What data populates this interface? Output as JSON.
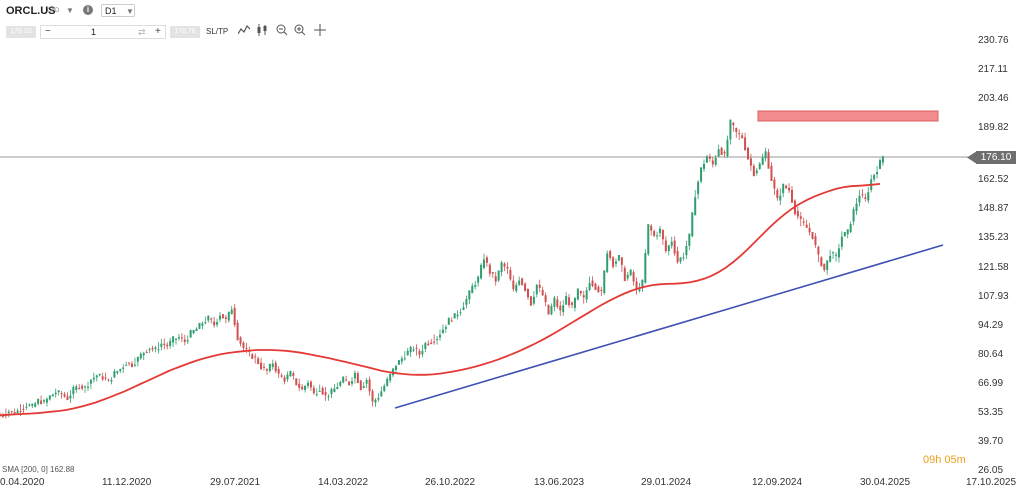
{
  "header": {
    "symbol": "ORCL.US",
    "symbol_type": "CFD",
    "timeframe": "D1",
    "sell_price": "176.10",
    "buy_price": "176.78",
    "quantity": "1",
    "sl_tp": "SL/TP"
  },
  "tools": [
    "line-chart-icon",
    "candles-icon",
    "zoom-out-icon",
    "zoom-in-icon",
    "crosshair-icon"
  ],
  "price_axis": [
    "230.76",
    "217.11",
    "203.46",
    "189.82",
    "176.10",
    "162.52",
    "148.87",
    "135.23",
    "121.58",
    "107.93",
    "94.29",
    "80.64",
    "66.99",
    "53.35",
    "39.70",
    "26.05"
  ],
  "date_axis": [
    "0.04.2020",
    "11.12.2020",
    "29.07.2021",
    "14.03.2022",
    "26.10.2022",
    "13.06.2023",
    "29.01.2024",
    "12.09.2024",
    "30.04.2025",
    "17.10.2025"
  ],
  "current_price": "176.10",
  "countdown": "09h 05m",
  "indicator": "SMA [200, 0] 162.88",
  "colors": {
    "bull": "#2e9e6e",
    "bear": "#d05050",
    "sma": "#e53935",
    "trendline": "#3f51b5",
    "resistance_zone": "#f07f7f",
    "price_line": "#8a8a8a"
  },
  "chart_data": {
    "type": "line",
    "ylim": [
      26.05,
      230.76
    ],
    "series": [
      {
        "values": [
          53,
          55,
          54,
          56,
          58,
          57,
          60,
          59,
          62,
          64,
          63,
          61,
          65,
          67,
          66,
          70,
          72,
          71,
          69,
          73,
          75,
          78,
          77,
          80,
          83,
          85,
          84,
          87,
          86,
          89,
          90,
          88,
          92,
          94,
          97,
          99,
          96,
          101,
          98,
          104,
          90,
          85,
          82,
          80,
          76,
          74,
          78,
          72,
          70,
          73,
          68,
          65,
          69,
          63,
          66,
          62,
          64,
          67,
          70,
          68,
          73,
          66,
          70,
          59,
          62,
          67,
          72,
          77,
          80,
          83,
          85,
          82,
          87,
          88,
          90,
          94,
          98,
          100,
          103,
          108,
          114,
          118,
          128,
          121,
          117,
          125,
          122,
          112,
          118,
          113,
          106,
          115,
          110,
          101,
          108,
          102,
          109,
          104,
          112,
          108,
          117,
          114,
          111,
          131,
          125,
          128,
          118,
          121,
          112,
          116,
          143,
          138,
          141,
          131,
          136,
          126,
          129,
          138,
          158,
          170,
          176,
          172,
          180,
          176,
          192,
          187,
          185,
          175,
          168,
          172,
          178,
          165,
          155,
          162,
          160,
          150,
          145,
          142,
          138,
          128,
          122,
          130,
          128,
          138,
          140,
          150,
          158,
          155,
          165,
          170,
          176
        ]
      },
      {
        "name": "SMA [200, 0]",
        "values": [
          53,
          53.2,
          53.4,
          53.6,
          53.8,
          54,
          54.3,
          54.7,
          55,
          55.5,
          56.2,
          57,
          58,
          59,
          60.3,
          61.6,
          63,
          64.4,
          66,
          67.6,
          69.2,
          70.8,
          72.4,
          74,
          75.4,
          76.7,
          78,
          79.2,
          80.2,
          81.1,
          81.9,
          82.5,
          83,
          83.4,
          83.7,
          84,
          84,
          84,
          83.8,
          83.6,
          83.2,
          82.7,
          82.1,
          81.4,
          80.7,
          80,
          79.2,
          78.4,
          77.6,
          76.8,
          75.9,
          75,
          74.1,
          73.5,
          73,
          72.6,
          72.3,
          72.2,
          72.2,
          72.4,
          72.8,
          73.3,
          73.9,
          74.6,
          75.4,
          76.3,
          77.3,
          78.4,
          79.6,
          80.9,
          82.3,
          83.8,
          85.4,
          87.1,
          88.9,
          90.8,
          92.8,
          94.9,
          97,
          99.1,
          101.2,
          103.3,
          105.3,
          107.2,
          109,
          110.6,
          112,
          113.2,
          114.1,
          114.8,
          115.2,
          115.4,
          115.5,
          115.7,
          116.1,
          116.8,
          117.8,
          119.2,
          121,
          123.2,
          125.8,
          128.8,
          132,
          135.5,
          139,
          142.4,
          145.6,
          148.5,
          151.1,
          153.3,
          155.2,
          156.8,
          158.2,
          159.4,
          160.5,
          161.3,
          161.8,
          162,
          162.2,
          162.5,
          162.88
        ]
      }
    ]
  }
}
